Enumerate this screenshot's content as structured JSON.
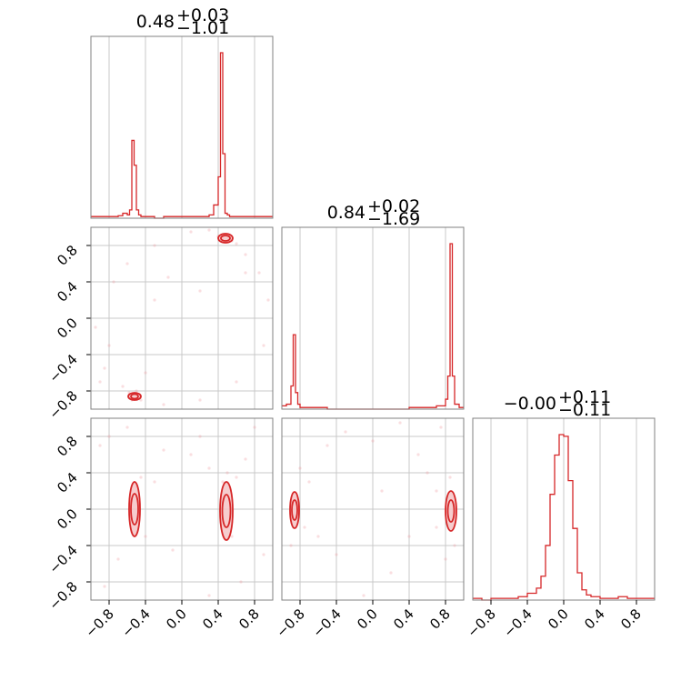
{
  "chart_data": [
    {
      "type": "histogram",
      "title": {
        "value": "0.48",
        "plus": "+0.03",
        "minus": "−1.01"
      },
      "bins": [
        -1.0,
        -0.95,
        -0.9,
        -0.85,
        -0.8,
        -0.75,
        -0.7,
        -0.65,
        -0.6,
        -0.575,
        -0.55,
        -0.525,
        -0.5,
        -0.475,
        -0.45,
        -0.4,
        -0.35,
        -0.3,
        -0.2,
        -0.1,
        0.0,
        0.1,
        0.2,
        0.3,
        0.35,
        0.4,
        0.425,
        0.45,
        0.475,
        0.5,
        0.525,
        0.55,
        0.575,
        0.6,
        0.65,
        0.7,
        0.8,
        0.9,
        1.0
      ],
      "counts": [
        0.01,
        0.01,
        0.01,
        0.01,
        0.01,
        0.01,
        0.015,
        0.03,
        0.02,
        0.05,
        0.47,
        0.32,
        0.05,
        0.02,
        0.01,
        0.01,
        0.01,
        0.0,
        0.01,
        0.01,
        0.01,
        0.01,
        0.01,
        0.02,
        0.08,
        0.25,
        1.0,
        0.39,
        0.03,
        0.02,
        0.01,
        0.01,
        0.01,
        0.01,
        0.01,
        0.01,
        0.01,
        0.01
      ],
      "xlim": [
        -1,
        1
      ],
      "xticks": [
        -0.8,
        -0.4,
        0.0,
        0.4,
        0.8
      ]
    },
    {
      "type": "histogram",
      "title": {
        "value": "0.84",
        "plus": "+0.02",
        "minus": "−1.69"
      },
      "bins": [
        -1.0,
        -0.95,
        -0.9,
        -0.875,
        -0.85,
        -0.825,
        -0.8,
        -0.75,
        -0.7,
        -0.6,
        -0.5,
        -0.4,
        -0.3,
        -0.2,
        -0.1,
        0.0,
        0.1,
        0.2,
        0.3,
        0.4,
        0.5,
        0.6,
        0.7,
        0.75,
        0.8,
        0.825,
        0.85,
        0.875,
        0.9,
        0.95,
        1.0
      ],
      "counts": [
        0.02,
        0.03,
        0.14,
        0.45,
        0.1,
        0.03,
        0.01,
        0.01,
        0.01,
        0.01,
        0.0,
        0.0,
        0.0,
        0.0,
        0.0,
        0.0,
        0.0,
        0.0,
        0.0,
        0.01,
        0.01,
        0.01,
        0.02,
        0.02,
        0.06,
        0.2,
        1.0,
        0.2,
        0.03,
        0.01
      ],
      "xlim": [
        -1,
        1
      ],
      "xticks": [
        -0.8,
        -0.4,
        0.0,
        0.4,
        0.8
      ]
    },
    {
      "type": "histogram",
      "title": {
        "value": "−0.00",
        "plus": "+0.11",
        "minus": "−0.11"
      },
      "bins": [
        -1.0,
        -0.9,
        -0.8,
        -0.6,
        -0.5,
        -0.4,
        -0.3,
        -0.25,
        -0.2,
        -0.15,
        -0.1,
        -0.05,
        0.0,
        0.05,
        0.1,
        0.15,
        0.2,
        0.25,
        0.3,
        0.4,
        0.5,
        0.6,
        0.7,
        0.8,
        0.9,
        1.0
      ],
      "counts": [
        0.01,
        0.0,
        0.01,
        0.01,
        0.02,
        0.04,
        0.07,
        0.14,
        0.32,
        0.62,
        0.85,
        0.97,
        0.96,
        0.7,
        0.42,
        0.16,
        0.06,
        0.03,
        0.02,
        0.01,
        0.01,
        0.02,
        0.01,
        0.01,
        0.01
      ],
      "xlim": [
        -1,
        1
      ],
      "xticks": [
        -0.8,
        -0.4,
        0.0,
        0.4,
        0.8
      ]
    },
    {
      "type": "scatter",
      "xlim": [
        -1,
        1
      ],
      "ylim": [
        -1,
        1
      ],
      "xticks": [
        -0.8,
        -0.4,
        0.0,
        0.4,
        0.8
      ],
      "yticks": [
        -0.8,
        -0.4,
        0.0,
        0.4,
        0.8
      ],
      "clusters": [
        {
          "x": 0.48,
          "y": 0.88,
          "contours": [
            {
              "rx": 0.08,
              "ry": 0.05
            },
            {
              "rx": 0.05,
              "ry": 0.03
            }
          ]
        },
        {
          "x": -0.52,
          "y": -0.86,
          "contours": [
            {
              "rx": 0.07,
              "ry": 0.04
            },
            {
              "rx": 0.04,
              "ry": 0.025
            }
          ]
        }
      ],
      "points": [
        [
          -0.9,
          -0.7
        ],
        [
          -0.85,
          -0.55
        ],
        [
          -0.8,
          -0.3
        ],
        [
          -0.95,
          -0.1
        ],
        [
          -0.75,
          0.4
        ],
        [
          -0.6,
          0.6
        ],
        [
          -0.3,
          0.8
        ],
        [
          0.1,
          0.95
        ],
        [
          0.3,
          0.97
        ],
        [
          0.7,
          0.7
        ],
        [
          0.85,
          0.5
        ],
        [
          0.95,
          0.2
        ],
        [
          0.9,
          -0.3
        ],
        [
          0.6,
          -0.7
        ],
        [
          0.2,
          -0.9
        ],
        [
          -0.2,
          -0.95
        ],
        [
          -0.4,
          -0.6
        ],
        [
          -0.65,
          -0.75
        ],
        [
          -0.55,
          -0.9
        ],
        [
          -0.5,
          -0.8
        ],
        [
          0.45,
          0.92
        ],
        [
          0.55,
          0.85
        ],
        [
          0.6,
          0.82
        ],
        [
          0.4,
          0.9
        ],
        [
          -0.58,
          -0.82
        ],
        [
          -0.45,
          -0.9
        ],
        [
          0.7,
          0.5
        ],
        [
          -0.15,
          0.45
        ],
        [
          0.2,
          0.3
        ],
        [
          -0.3,
          0.2
        ]
      ]
    },
    {
      "type": "scatter",
      "xlim": [
        -1,
        1
      ],
      "ylim": [
        -1,
        1
      ],
      "xticks": [
        -0.8,
        -0.4,
        0.0,
        0.4,
        0.8
      ],
      "yticks": [
        -0.8,
        -0.4,
        0.0,
        0.4,
        0.8
      ],
      "clusters": [
        {
          "x": -0.52,
          "y": 0.0,
          "contours": [
            {
              "rx": 0.06,
              "ry": 0.3
            },
            {
              "rx": 0.04,
              "ry": 0.17
            }
          ]
        },
        {
          "x": 0.49,
          "y": -0.02,
          "contours": [
            {
              "rx": 0.07,
              "ry": 0.32
            },
            {
              "rx": 0.045,
              "ry": 0.18
            }
          ]
        }
      ],
      "points": [
        [
          -0.9,
          0.7
        ],
        [
          -0.8,
          0.8
        ],
        [
          -0.6,
          0.9
        ],
        [
          -0.3,
          0.3
        ],
        [
          -0.2,
          0.65
        ],
        [
          0.1,
          0.6
        ],
        [
          0.3,
          0.45
        ],
        [
          0.6,
          0.35
        ],
        [
          0.7,
          0.55
        ],
        [
          0.8,
          0.9
        ],
        [
          0.9,
          -0.5
        ],
        [
          0.65,
          -0.8
        ],
        [
          0.3,
          -0.95
        ],
        [
          -0.1,
          -0.45
        ],
        [
          -0.4,
          -0.3
        ],
        [
          -0.7,
          -0.55
        ],
        [
          -0.85,
          -0.85
        ],
        [
          -0.5,
          0.25
        ],
        [
          -0.55,
          -0.25
        ],
        [
          0.45,
          0.3
        ],
        [
          0.55,
          -0.3
        ],
        [
          0.5,
          0.4
        ],
        [
          -0.45,
          0.35
        ],
        [
          0.2,
          0.8
        ]
      ]
    },
    {
      "type": "scatter",
      "xlim": [
        -1,
        1
      ],
      "ylim": [
        -1,
        1
      ],
      "xticks": [
        -0.8,
        -0.4,
        0.0,
        0.4,
        0.8
      ],
      "yticks": [
        -0.8,
        -0.4,
        0.0,
        0.4,
        0.8
      ],
      "clusters": [
        {
          "x": -0.86,
          "y": -0.01,
          "contours": [
            {
              "rx": 0.05,
              "ry": 0.2
            },
            {
              "rx": 0.03,
              "ry": 0.11
            }
          ]
        },
        {
          "x": 0.86,
          "y": -0.02,
          "contours": [
            {
              "rx": 0.06,
              "ry": 0.22
            },
            {
              "rx": 0.035,
              "ry": 0.12
            }
          ]
        }
      ],
      "points": [
        [
          -0.5,
          0.7
        ],
        [
          -0.3,
          0.85
        ],
        [
          0.0,
          0.75
        ],
        [
          0.3,
          0.95
        ],
        [
          0.5,
          0.6
        ],
        [
          0.6,
          0.4
        ],
        [
          0.7,
          0.2
        ],
        [
          0.75,
          0.9
        ],
        [
          0.4,
          -0.3
        ],
        [
          0.2,
          -0.7
        ],
        [
          -0.1,
          -0.95
        ],
        [
          -0.4,
          -0.5
        ],
        [
          -0.6,
          -0.3
        ],
        [
          -0.7,
          0.3
        ],
        [
          -0.8,
          0.45
        ],
        [
          -0.9,
          -0.4
        ],
        [
          0.85,
          0.35
        ],
        [
          0.9,
          -0.4
        ],
        [
          0.8,
          -0.55
        ],
        [
          0.7,
          -0.2
        ],
        [
          -0.75,
          -0.2
        ],
        [
          0.1,
          0.2
        ]
      ]
    }
  ],
  "colors": {
    "hist": "#d62728",
    "contour": "#d62728",
    "fill": "#f4c4c6",
    "point": "#f2a0a6"
  }
}
